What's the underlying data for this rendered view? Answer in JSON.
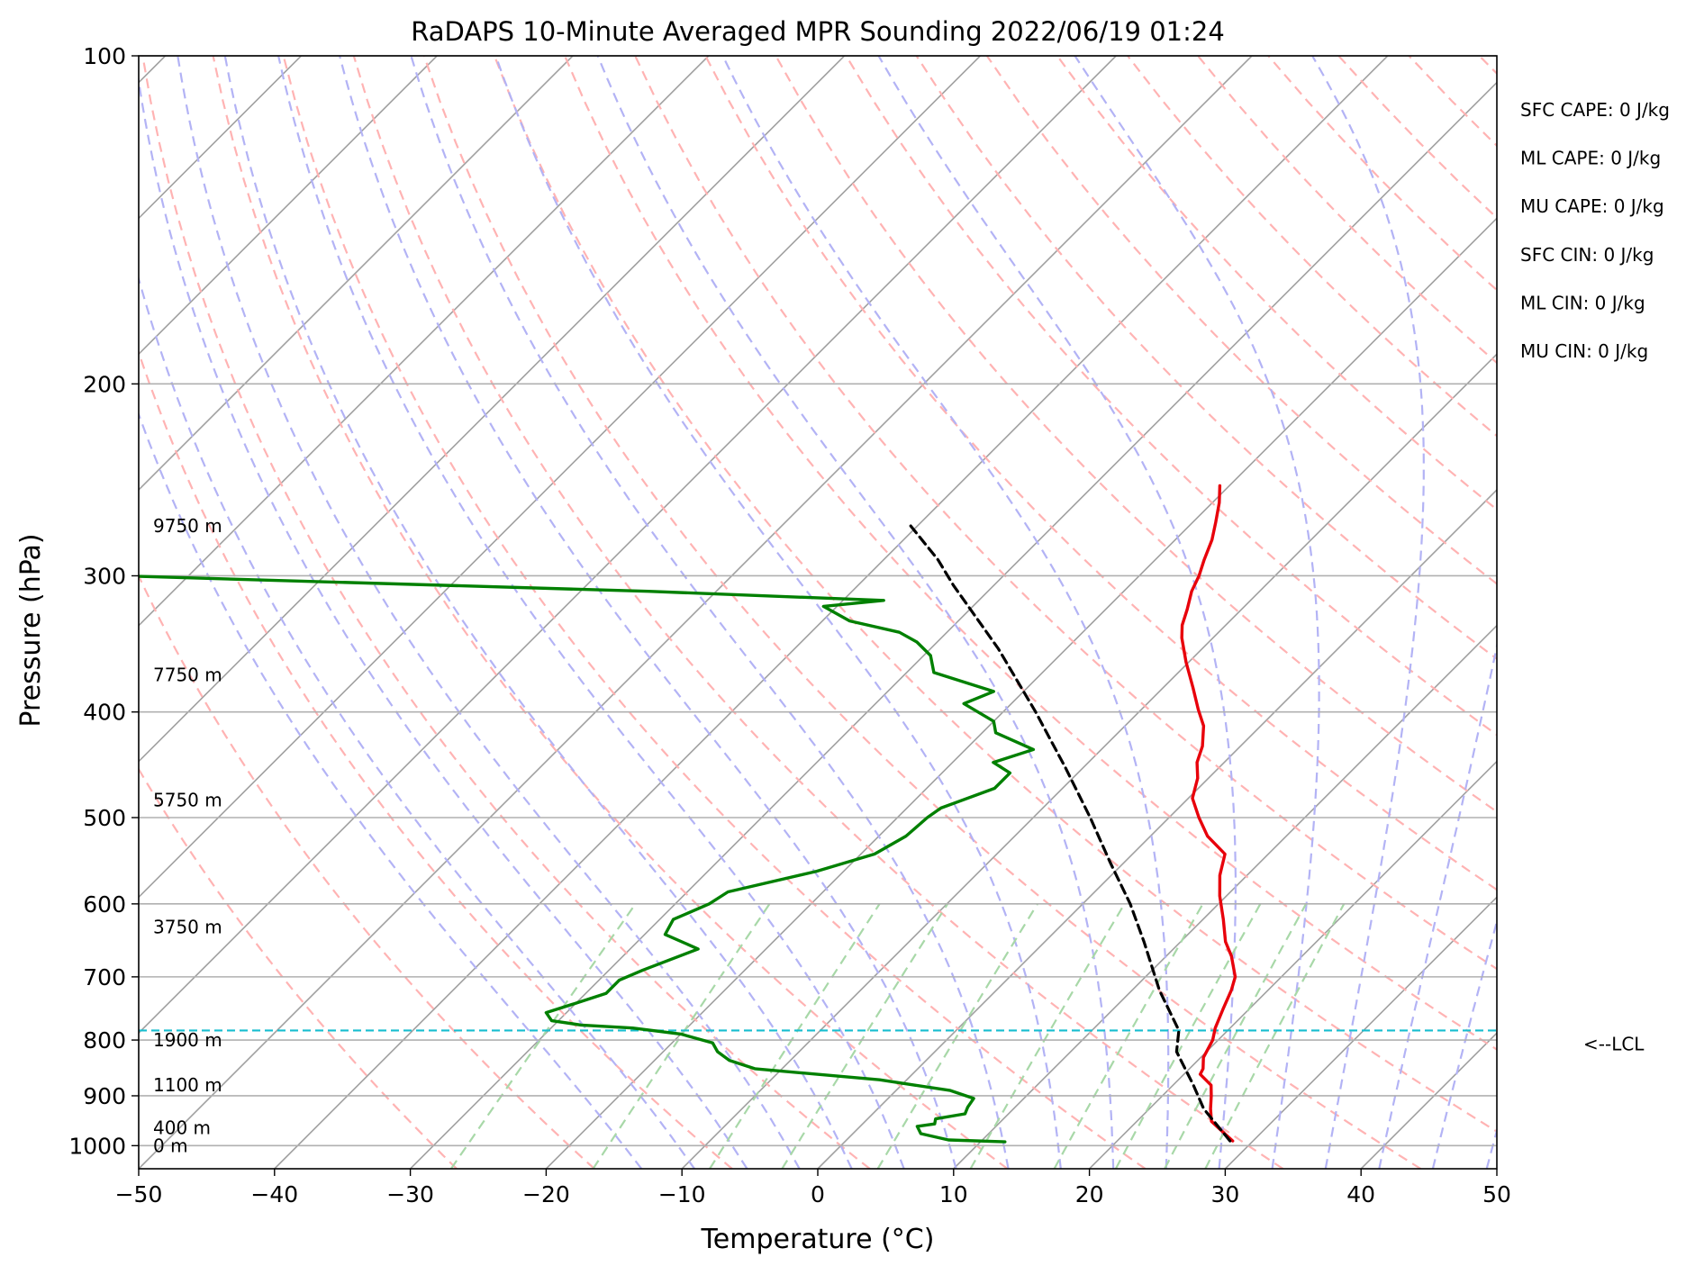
{
  "chart_data": {
    "type": "line",
    "subtype": "skew-t log-p sounding",
    "title": "RaDAPS 10-Minute Averaged MPR Sounding 2022/06/19 01:24",
    "xlabel": "Temperature (°C)",
    "ylabel": "Pressure (hPa)",
    "xlim": [
      -50,
      50
    ],
    "ylim": [
      1050,
      100
    ],
    "y_scale": "log",
    "skew_deg": 45,
    "grid": true,
    "x_ticks": [
      -50,
      -40,
      -30,
      -20,
      -10,
      0,
      10,
      20,
      30,
      40,
      50
    ],
    "x_tick_labels": [
      "−50",
      "−40",
      "−30",
      "−20",
      "−10",
      "0",
      "10",
      "20",
      "30",
      "40",
      "50"
    ],
    "y_ticks": [
      100,
      200,
      300,
      400,
      500,
      600,
      700,
      800,
      900,
      1000
    ],
    "y_tick_labels": [
      "100",
      "200",
      "300",
      "400",
      "500",
      "600",
      "700",
      "800",
      "900",
      "1000"
    ],
    "series": [
      {
        "key": "temperature",
        "color": "#e8000b",
        "style": "solid",
        "points": [
          [
            28.5,
            990
          ],
          [
            27.0,
            970
          ],
          [
            25.5,
            950
          ],
          [
            24.5,
            925
          ],
          [
            23.6,
            900
          ],
          [
            22.8,
            880
          ],
          [
            21.2,
            860
          ],
          [
            21.0,
            850
          ],
          [
            20.2,
            830
          ],
          [
            19.6,
            800
          ],
          [
            18.9,
            780
          ],
          [
            18.1,
            750
          ],
          [
            17.3,
            720
          ],
          [
            16.6,
            700
          ],
          [
            14.8,
            670
          ],
          [
            13.3,
            650
          ],
          [
            11.5,
            620
          ],
          [
            9.5,
            590
          ],
          [
            8.0,
            565
          ],
          [
            6.8,
            540
          ],
          [
            4.2,
            520
          ],
          [
            2.2,
            500
          ],
          [
            0.3,
            480
          ],
          [
            -0.8,
            460
          ],
          [
            -2.0,
            445
          ],
          [
            -2.8,
            430
          ],
          [
            -4.2,
            412
          ],
          [
            -5.8,
            398
          ],
          [
            -7.8,
            380
          ],
          [
            -10.2,
            360
          ],
          [
            -12.3,
            342
          ],
          [
            -13.2,
            333
          ],
          [
            -14.0,
            322
          ],
          [
            -15.0,
            310
          ],
          [
            -15.6,
            300
          ],
          [
            -16.4,
            290
          ],
          [
            -17.3,
            278
          ],
          [
            -18.3,
            268
          ],
          [
            -19.5,
            257
          ],
          [
            -20.7,
            248
          ]
        ]
      },
      {
        "key": "dewpoint",
        "color": "#008000",
        "style": "solid",
        "points": [
          [
            11.8,
            992
          ],
          [
            7.5,
            988
          ],
          [
            5.0,
            975
          ],
          [
            4.2,
            960
          ],
          [
            5.3,
            955
          ],
          [
            5.0,
            945
          ],
          [
            6.8,
            935
          ],
          [
            6.5,
            922
          ],
          [
            6.3,
            905
          ],
          [
            4.0,
            890
          ],
          [
            1.0,
            880
          ],
          [
            -2.0,
            870
          ],
          [
            -7.0,
            860
          ],
          [
            -12.0,
            850
          ],
          [
            -14.5,
            835
          ],
          [
            -16.0,
            820
          ],
          [
            -17.0,
            805
          ],
          [
            -20.0,
            790
          ],
          [
            -24.0,
            780
          ],
          [
            -28.0,
            775
          ],
          [
            -30.5,
            768
          ],
          [
            -31.5,
            755
          ],
          [
            -30.0,
            740
          ],
          [
            -28.5,
            725
          ],
          [
            -28.5,
            705
          ],
          [
            -27.5,
            690
          ],
          [
            -25.0,
            660
          ],
          [
            -28.5,
            640
          ],
          [
            -29.0,
            620
          ],
          [
            -27.5,
            600
          ],
          [
            -27.0,
            585
          ],
          [
            -22.0,
            560
          ],
          [
            -19.0,
            540
          ],
          [
            -18.0,
            520
          ],
          [
            -17.8,
            500
          ],
          [
            -17.5,
            490
          ],
          [
            -15.0,
            470
          ],
          [
            -15.0,
            455
          ],
          [
            -17.0,
            445
          ],
          [
            -15.0,
            433
          ],
          [
            -19.0,
            418
          ],
          [
            -20.0,
            408
          ],
          [
            -23.5,
            393
          ],
          [
            -22.2,
            383
          ],
          [
            -28.0,
            368
          ],
          [
            -29.5,
            355
          ],
          [
            -31.5,
            345
          ],
          [
            -33.5,
            338
          ],
          [
            -38.0,
            330
          ],
          [
            -41.0,
            320
          ],
          [
            -37.0,
            316
          ],
          [
            -55.0,
            310
          ],
          [
            -95.0,
            300
          ]
        ]
      },
      {
        "key": "parcel",
        "color": "#000000",
        "style": "dashed",
        "points": [
          [
            28.3,
            990
          ],
          [
            24.0,
            925
          ],
          [
            21.5,
            880
          ],
          [
            17.8,
            820
          ],
          [
            16.4,
            784
          ],
          [
            12.0,
            720
          ],
          [
            7.3,
            650
          ],
          [
            3.5,
            600
          ],
          [
            -1.0,
            550
          ],
          [
            -5.8,
            500
          ],
          [
            -11.3,
            450
          ],
          [
            -17.6,
            400
          ],
          [
            -25.0,
            350
          ],
          [
            -33.0,
            306
          ],
          [
            -36.0,
            290
          ],
          [
            -40.5,
            270
          ]
        ]
      }
    ],
    "lcl_pressure": 784,
    "lcl_label": "<--LCL",
    "height_labels": [
      {
        "text": "0 m",
        "p": 1000
      },
      {
        "text": "400 m",
        "p": 963
      },
      {
        "text": "1100 m",
        "p": 880
      },
      {
        "text": "1900 m",
        "p": 800
      },
      {
        "text": "3750 m",
        "p": 630
      },
      {
        "text": "5750 m",
        "p": 482
      },
      {
        "text": "7750 m",
        "p": 370
      },
      {
        "text": "9750 m",
        "p": 270
      }
    ],
    "indices": [
      {
        "label": "SFC CAPE: 0 J/kg"
      },
      {
        "label": "ML CAPE: 0 J/kg"
      },
      {
        "label": "MU CAPE: 0 J/kg"
      },
      {
        "label": "SFC CIN: 0 J/kg"
      },
      {
        "label": "ML CIN: 0 J/kg"
      },
      {
        "label": "MU CIN: 0 J/kg"
      }
    ],
    "background_lines": {
      "isotherm_color": "#a0a0a0",
      "isobar_color": "#b0b0b0",
      "dry_adiabat_color": "#ffb3b3",
      "moist_adiabat_color": "#b3b3f5",
      "mixing_ratio_color": "#a8d8a8",
      "lcl_color": "#17becf"
    }
  }
}
